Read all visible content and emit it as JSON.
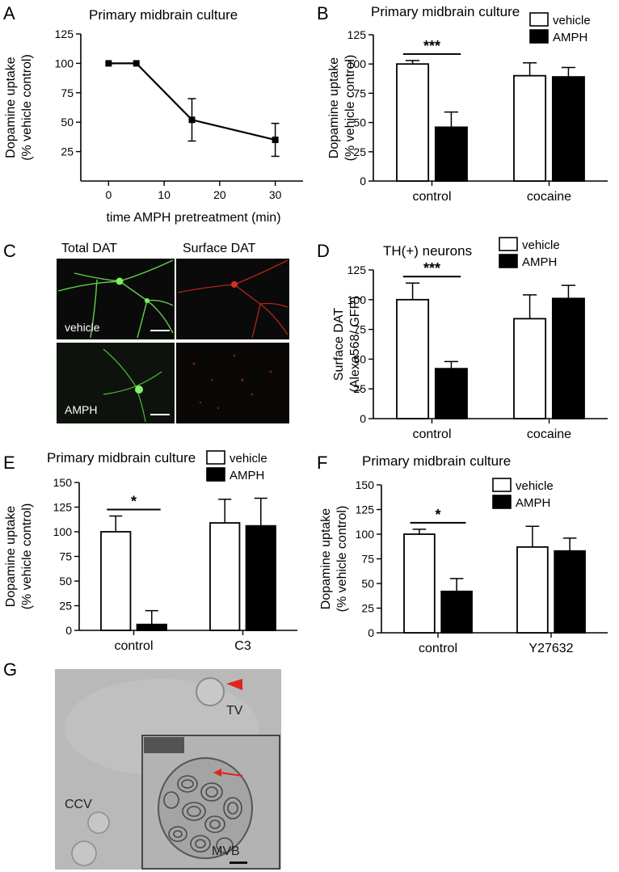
{
  "panels": {
    "A": "A",
    "B": "B",
    "C": "C",
    "D": "D",
    "E": "E",
    "F": "F",
    "G": "G"
  },
  "chart_data": [
    {
      "id": "A",
      "type": "line",
      "title": "Primary midbrain culture",
      "xlabel": "time AMPH pretreatment (min)",
      "ylabel": [
        "Dopamine uptake",
        "(% vehicle control)"
      ],
      "xlim": [
        -5,
        35
      ],
      "ylim": [
        0,
        125
      ],
      "xticks": [
        0,
        10,
        20,
        30
      ],
      "yticks": [
        25,
        50,
        75,
        100,
        125
      ],
      "series": [
        {
          "x": [
            0,
            5,
            15,
            30
          ],
          "y": [
            100,
            100,
            52,
            35
          ],
          "err": [
            0,
            0,
            18,
            14
          ]
        }
      ]
    },
    {
      "id": "B",
      "type": "bar",
      "title": "Primary midbrain culture",
      "ylabel": [
        "Dopamine uptake",
        "(% vehicle control)"
      ],
      "ylim": [
        0,
        125
      ],
      "yticks": [
        0,
        25,
        50,
        75,
        100,
        125
      ],
      "categories": [
        "control",
        "cocaine"
      ],
      "legend": [
        "vehicle",
        "AMPH"
      ],
      "values": [
        [
          100,
          46
        ],
        [
          90,
          89
        ]
      ],
      "errors": [
        [
          3,
          13
        ],
        [
          11,
          8
        ]
      ],
      "significance": "***"
    },
    {
      "id": "D",
      "type": "bar",
      "title": "TH(+) neurons",
      "ylabel": [
        "Surface DAT",
        "(Alexa568/ GFP)"
      ],
      "ylim": [
        0,
        125
      ],
      "yticks": [
        0,
        25,
        50,
        75,
        100,
        125
      ],
      "categories": [
        "control",
        "cocaine"
      ],
      "legend": [
        "vehicle",
        "AMPH"
      ],
      "values": [
        [
          100,
          42
        ],
        [
          84,
          101
        ]
      ],
      "errors": [
        [
          14,
          6
        ],
        [
          20,
          11
        ]
      ],
      "significance": "***"
    },
    {
      "id": "E",
      "type": "bar",
      "title": "Primary midbrain culture",
      "ylabel": [
        "Dopamine uptake",
        "(% vehicle control)"
      ],
      "ylim": [
        0,
        150
      ],
      "yticks": [
        0,
        25,
        50,
        75,
        100,
        125,
        150
      ],
      "categories": [
        "control",
        "C3"
      ],
      "legend": [
        "vehicle",
        "AMPH"
      ],
      "values": [
        [
          100,
          6
        ],
        [
          109,
          106
        ]
      ],
      "errors": [
        [
          16,
          14
        ],
        [
          24,
          28
        ]
      ],
      "significance": "*"
    },
    {
      "id": "F",
      "type": "bar",
      "title": "Primary midbrain culture",
      "ylabel": [
        "Dopamine uptake",
        "(% vehicle control)"
      ],
      "ylim": [
        0,
        150
      ],
      "yticks": [
        0,
        25,
        50,
        75,
        100,
        125,
        150
      ],
      "categories": [
        "control",
        "Y27632"
      ],
      "legend": [
        "vehicle",
        "AMPH"
      ],
      "values": [
        [
          100,
          42
        ],
        [
          87,
          83
        ]
      ],
      "errors": [
        [
          5,
          13
        ],
        [
          21,
          13
        ]
      ],
      "significance": "*"
    }
  ],
  "micrographs": {
    "col_total": "Total DAT",
    "col_surface": "Surface DAT",
    "row_vehicle": "vehicle",
    "row_amph": "AMPH",
    "colors": {
      "green": "#5fd24a",
      "red": "#b52418",
      "bg": "#0a0a0a"
    }
  },
  "em_image": {
    "labels": {
      "tv": "TV",
      "ccv": "CCV",
      "mvb": "MVB"
    },
    "colors": {
      "bg": "#b9b9b9",
      "arrow": "#e2231a"
    }
  }
}
